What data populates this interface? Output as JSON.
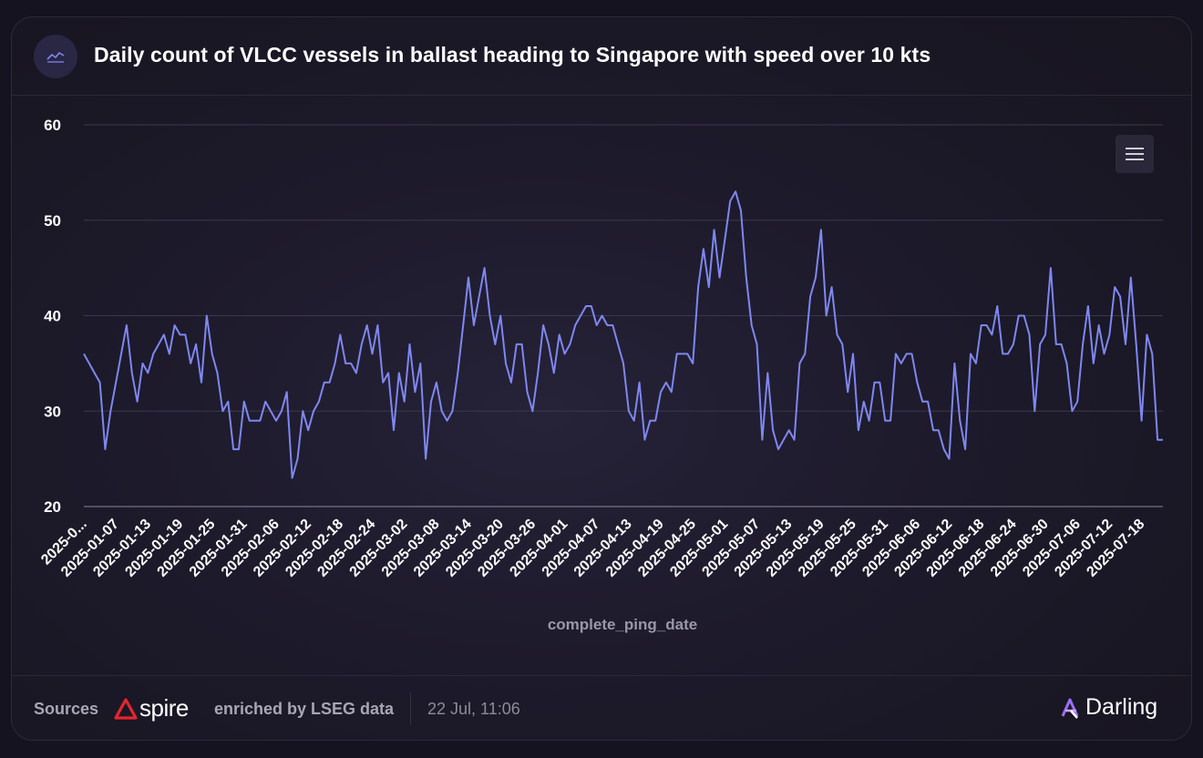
{
  "header": {
    "title": "Daily count of VLCC vessels in ballast heading to Singapore with speed over 10 kts",
    "icon": "line-chart-icon"
  },
  "menu": {
    "icon": "hamburger-menu-icon"
  },
  "footer": {
    "sources_label": "Sources",
    "source_logo_text": "spire",
    "enriched_label": "enriched by LSEG data",
    "timestamp": "22 Jul, 11:06",
    "brand": "Darling"
  },
  "colors": {
    "line": "#7f87f0",
    "grid": "#3b384b",
    "background": "#1d1a2b",
    "spire_red": "#e5262e",
    "darling_purple": "#9b6ef3"
  },
  "chart_data": {
    "type": "line",
    "title": "Daily count of VLCC vessels in ballast heading to Singapore with speed over 10 kts",
    "xlabel": "complete_ping_date",
    "ylabel": "",
    "ylim": [
      20,
      60
    ],
    "yticks": [
      20,
      30,
      40,
      50,
      60
    ],
    "grid": true,
    "legend": "none",
    "x_start": "2025-01-01",
    "x_tick_labels": [
      "2025-0...",
      "2025-01-07",
      "2025-01-13",
      "2025-01-19",
      "2025-01-25",
      "2025-01-31",
      "2025-02-06",
      "2025-02-12",
      "2025-02-18",
      "2025-02-24",
      "2025-03-02",
      "2025-03-08",
      "2025-03-14",
      "2025-03-20",
      "2025-03-26",
      "2025-04-01",
      "2025-04-07",
      "2025-04-13",
      "2025-04-19",
      "2025-04-25",
      "2025-05-01",
      "2025-05-07",
      "2025-05-13",
      "2025-05-19",
      "2025-05-25",
      "2025-05-31",
      "2025-06-06",
      "2025-06-12",
      "2025-06-18",
      "2025-06-24",
      "2025-06-30",
      "2025-07-06",
      "2025-07-12",
      "2025-07-18"
    ],
    "series": [
      {
        "values": [
          36,
          35,
          34,
          33,
          26,
          30,
          33,
          36,
          39,
          34,
          31,
          35,
          34,
          36,
          37,
          38,
          36,
          39,
          38,
          38,
          35,
          37,
          33,
          40,
          36,
          34,
          30,
          31,
          26,
          26,
          31,
          29,
          29,
          29,
          31,
          30,
          29,
          30,
          32,
          23,
          25,
          30,
          28,
          30,
          31,
          33,
          33,
          35,
          38,
          35,
          35,
          34,
          37,
          39,
          36,
          39,
          33,
          34,
          28,
          34,
          31,
          37,
          32,
          35,
          25,
          31,
          33,
          30,
          29,
          30,
          34,
          39,
          44,
          39,
          42,
          45,
          40,
          37,
          40,
          35,
          33,
          37,
          37,
          32,
          30,
          34,
          39,
          37,
          34,
          38,
          36,
          37,
          39,
          40,
          41,
          41,
          39,
          40,
          39,
          39,
          37,
          35,
          30,
          29,
          33,
          27,
          29,
          29,
          32,
          33,
          32,
          36,
          36,
          36,
          35,
          43,
          47,
          43,
          49,
          44,
          48,
          52,
          53,
          51,
          44,
          39,
          37,
          27,
          34,
          28,
          26,
          27,
          28,
          27,
          35,
          36,
          42,
          44,
          49,
          40,
          43,
          38,
          37,
          32,
          36,
          28,
          31,
          29,
          33,
          33,
          29,
          29,
          36,
          35,
          36,
          36,
          33,
          31,
          31,
          28,
          28,
          26,
          25,
          35,
          29,
          26,
          36,
          35,
          39,
          39,
          38,
          41,
          36,
          36,
          37,
          40,
          40,
          38,
          30,
          37,
          38,
          45,
          37,
          37,
          35,
          30,
          31,
          37,
          41,
          35,
          39,
          36,
          38,
          43,
          42,
          37,
          44,
          37,
          29,
          38,
          36,
          27,
          27
        ]
      }
    ]
  }
}
